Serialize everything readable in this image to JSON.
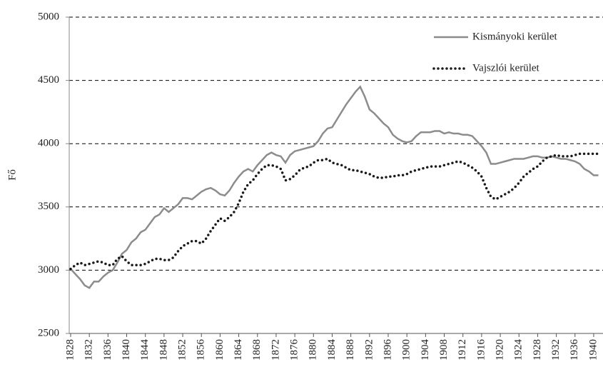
{
  "chart_data": {
    "type": "line",
    "y_label": "Fő",
    "x": [
      1828,
      1829,
      1830,
      1831,
      1832,
      1833,
      1834,
      1835,
      1836,
      1837,
      1838,
      1839,
      1840,
      1841,
      1842,
      1843,
      1844,
      1845,
      1846,
      1847,
      1848,
      1849,
      1850,
      1851,
      1852,
      1853,
      1854,
      1855,
      1856,
      1857,
      1858,
      1859,
      1860,
      1861,
      1862,
      1863,
      1864,
      1865,
      1866,
      1867,
      1868,
      1869,
      1870,
      1871,
      1872,
      1873,
      1874,
      1875,
      1876,
      1877,
      1878,
      1879,
      1880,
      1881,
      1882,
      1883,
      1884,
      1885,
      1886,
      1887,
      1888,
      1889,
      1890,
      1891,
      1892,
      1893,
      1894,
      1895,
      1896,
      1897,
      1898,
      1899,
      1900,
      1901,
      1902,
      1903,
      1904,
      1905,
      1906,
      1907,
      1908,
      1909,
      1910,
      1911,
      1912,
      1913,
      1914,
      1915,
      1916,
      1917,
      1918,
      1919,
      1920,
      1921,
      1922,
      1923,
      1924,
      1925,
      1926,
      1927,
      1928,
      1929,
      1930,
      1931,
      1932,
      1933,
      1934,
      1935,
      1936,
      1937,
      1938,
      1939,
      1940,
      1941
    ],
    "series": [
      {
        "name": "Kismányoki kerület",
        "color": "#8c8c8c",
        "dash": "solid",
        "values": [
          3010,
          2970,
          2930,
          2880,
          2860,
          2910,
          2910,
          2950,
          2980,
          3000,
          3060,
          3130,
          3160,
          3220,
          3250,
          3300,
          3320,
          3370,
          3420,
          3440,
          3490,
          3460,
          3490,
          3520,
          3570,
          3570,
          3560,
          3590,
          3620,
          3640,
          3650,
          3630,
          3600,
          3590,
          3630,
          3690,
          3740,
          3780,
          3800,
          3780,
          3830,
          3870,
          3910,
          3930,
          3910,
          3900,
          3850,
          3910,
          3940,
          3950,
          3960,
          3970,
          3980,
          4020,
          4080,
          4120,
          4130,
          4190,
          4250,
          4310,
          4360,
          4410,
          4450,
          4370,
          4270,
          4240,
          4200,
          4160,
          4130,
          4070,
          4040,
          4020,
          4010,
          4020,
          4060,
          4090,
          4090,
          4090,
          4100,
          4100,
          4080,
          4090,
          4080,
          4080,
          4070,
          4070,
          4060,
          4020,
          3980,
          3930,
          3840,
          3840,
          3850,
          3860,
          3870,
          3880,
          3880,
          3880,
          3890,
          3900,
          3900,
          3890,
          3890,
          3900,
          3890,
          3880,
          3880,
          3870,
          3860,
          3840,
          3800,
          3780,
          3750,
          3750
        ]
      },
      {
        "name": "Vajszlói kerület",
        "color": "#1a1a1a",
        "dash": "dotted",
        "values": [
          3010,
          3040,
          3060,
          3040,
          3050,
          3060,
          3070,
          3060,
          3040,
          3040,
          3090,
          3110,
          3070,
          3040,
          3040,
          3040,
          3050,
          3070,
          3090,
          3090,
          3080,
          3080,
          3100,
          3150,
          3190,
          3210,
          3230,
          3230,
          3210,
          3250,
          3310,
          3360,
          3410,
          3390,
          3420,
          3460,
          3530,
          3620,
          3680,
          3710,
          3760,
          3800,
          3830,
          3830,
          3820,
          3800,
          3710,
          3720,
          3750,
          3790,
          3810,
          3820,
          3850,
          3870,
          3870,
          3880,
          3850,
          3840,
          3830,
          3810,
          3790,
          3790,
          3780,
          3770,
          3760,
          3740,
          3730,
          3730,
          3740,
          3740,
          3750,
          3750,
          3760,
          3780,
          3790,
          3800,
          3810,
          3820,
          3820,
          3820,
          3830,
          3840,
          3850,
          3860,
          3850,
          3830,
          3810,
          3780,
          3740,
          3650,
          3580,
          3560,
          3580,
          3600,
          3620,
          3650,
          3690,
          3740,
          3770,
          3800,
          3820,
          3860,
          3890,
          3900,
          3910,
          3900,
          3900,
          3900,
          3910,
          3920,
          3920,
          3920,
          3920,
          3920
        ]
      }
    ],
    "xlim": [
      1828,
      1941
    ],
    "xticks": [
      1828,
      1832,
      1836,
      1840,
      1844,
      1848,
      1852,
      1856,
      1860,
      1864,
      1868,
      1872,
      1876,
      1880,
      1884,
      1888,
      1892,
      1896,
      1900,
      1904,
      1908,
      1912,
      1916,
      1920,
      1924,
      1928,
      1932,
      1936,
      1940
    ],
    "ylim": [
      2500,
      5000
    ],
    "yticks": [
      2500,
      3000,
      3500,
      4000,
      4500,
      5000
    ],
    "grid": true,
    "legend": "top-right"
  }
}
